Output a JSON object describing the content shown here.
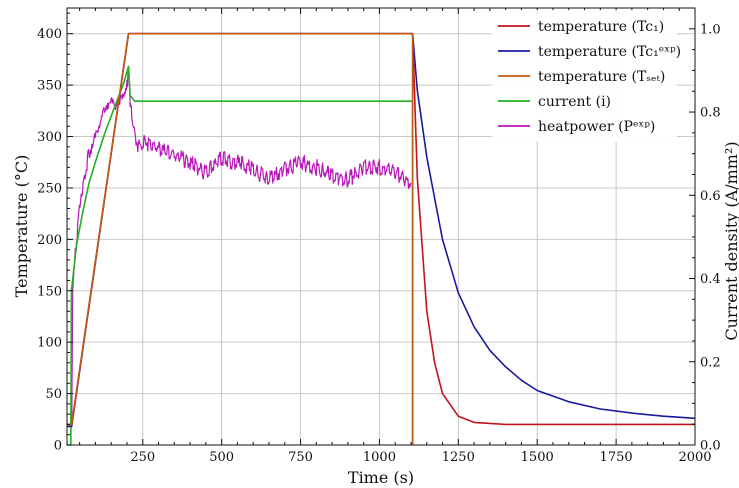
{
  "chart_data": {
    "type": "line",
    "xlabel": "Time (s)",
    "ylabel_left": "Temperature (°C)",
    "ylabel_right": "Current density (A/mm²)",
    "xlim": [
      10,
      2000
    ],
    "ylim_left": [
      0,
      425
    ],
    "ylim_right": [
      0,
      1.05
    ],
    "grid": true,
    "legend_position": "top-right",
    "x_ticks": [
      250,
      500,
      750,
      1000,
      1250,
      1500,
      1750,
      2000
    ],
    "x_tick_labels": [
      "250",
      "500",
      "750",
      "1000",
      "1250",
      "1500",
      "1750",
      "2000"
    ],
    "y_left_ticks": [
      0,
      50,
      100,
      150,
      200,
      250,
      300,
      350,
      400
    ],
    "y_left_tick_labels": [
      "0",
      "50",
      "100",
      "150",
      "200",
      "250",
      "300",
      "350",
      "400"
    ],
    "y_right_ticks": [
      0,
      0.2,
      0.4,
      0.6,
      0.8,
      1.0
    ],
    "y_right_tick_labels": [
      "0.0",
      "0.2",
      "0.4",
      "0.6",
      "0.8",
      "1.0"
    ],
    "series": [
      {
        "name": "temperature (Tc₁)",
        "color": "#c0141c",
        "axis": "left",
        "points": [
          [
            10,
            20
          ],
          [
            25,
            20
          ],
          [
            205,
            400
          ],
          [
            1105,
            400
          ],
          [
            1120,
            260
          ],
          [
            1150,
            130
          ],
          [
            1175,
            80
          ],
          [
            1200,
            50
          ],
          [
            1250,
            28
          ],
          [
            1300,
            22
          ],
          [
            1400,
            20
          ],
          [
            2000,
            20
          ]
        ]
      },
      {
        "name": "temperature (Tc₁^exp)",
        "color": "#1a1a9e",
        "axis": "left",
        "points": [
          [
            10,
            18
          ],
          [
            25,
            18
          ],
          [
            205,
            400
          ],
          [
            1105,
            400
          ],
          [
            1120,
            345
          ],
          [
            1150,
            280
          ],
          [
            1200,
            200
          ],
          [
            1250,
            148
          ],
          [
            1300,
            115
          ],
          [
            1350,
            92
          ],
          [
            1400,
            76
          ],
          [
            1450,
            63
          ],
          [
            1500,
            53
          ],
          [
            1600,
            42
          ],
          [
            1700,
            35
          ],
          [
            1800,
            31
          ],
          [
            1900,
            28
          ],
          [
            2000,
            26
          ]
        ]
      },
      {
        "name": "temperature (T_set)",
        "color": "#c05a14",
        "axis": "left",
        "points": [
          [
            10,
            20
          ],
          [
            25,
            20
          ],
          [
            205,
            400
          ],
          [
            1105,
            400
          ],
          [
            1105,
            0
          ]
        ]
      },
      {
        "name": "current (i)",
        "color": "#22b022",
        "axis": "right",
        "points": [
          [
            10,
            0
          ],
          [
            22,
            0
          ],
          [
            24,
            0.37
          ],
          [
            40,
            0.48
          ],
          [
            60,
            0.56
          ],
          [
            80,
            0.63
          ],
          [
            100,
            0.68
          ],
          [
            130,
            0.75
          ],
          [
            160,
            0.81
          ],
          [
            190,
            0.87
          ],
          [
            205,
            0.91
          ],
          [
            210,
            0.84
          ],
          [
            225,
            0.826
          ],
          [
            1105,
            0.826
          ],
          [
            1105,
            0
          ]
        ]
      },
      {
        "name": "heatpower (P^exp)",
        "color": "#b818b8",
        "axis": "left",
        "points": [
          [
            10,
            18
          ],
          [
            25,
            18
          ],
          [
            28,
            150
          ],
          [
            40,
            200
          ],
          [
            55,
            245
          ],
          [
            75,
            278
          ],
          [
            100,
            305
          ],
          [
            125,
            320
          ],
          [
            150,
            330
          ],
          [
            175,
            338
          ],
          [
            200,
            350
          ],
          [
            205,
            362
          ],
          [
            212,
            325
          ],
          [
            225,
            300
          ],
          [
            240,
            288
          ],
          [
            260,
            295
          ],
          [
            300,
            288
          ],
          [
            350,
            282
          ],
          [
            400,
            275
          ],
          [
            450,
            265
          ],
          [
            500,
            278
          ],
          [
            550,
            275
          ],
          [
            600,
            268
          ],
          [
            650,
            258
          ],
          [
            700,
            268
          ],
          [
            750,
            275
          ],
          [
            800,
            270
          ],
          [
            850,
            262
          ],
          [
            900,
            258
          ],
          [
            950,
            270
          ],
          [
            1000,
            270
          ],
          [
            1050,
            265
          ],
          [
            1080,
            258
          ],
          [
            1100,
            255
          ]
        ]
      }
    ],
    "legend": [
      {
        "label": "temperature (Tc₁)",
        "color": "#c0141c"
      },
      {
        "label": "temperature (Tc₁ᵉˣᵖ)",
        "color": "#1a1a9e"
      },
      {
        "label": "temperature (Tₛₑₜ)",
        "color": "#c05a14"
      },
      {
        "label": "current (i)",
        "color": "#22b022"
      },
      {
        "label": "heatpower (Pᵉˣᵖ)",
        "color": "#b818b8"
      }
    ]
  }
}
